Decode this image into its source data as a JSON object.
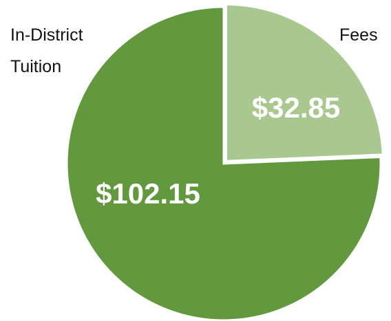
{
  "chart_data": {
    "type": "pie",
    "categories": [
      "Fees",
      "In-District Tuition"
    ],
    "values": [
      32.85,
      102.15
    ],
    "value_labels": [
      "$32.85",
      "$102.15"
    ],
    "colors": [
      "#a9c88f",
      "#62993e"
    ]
  }
}
